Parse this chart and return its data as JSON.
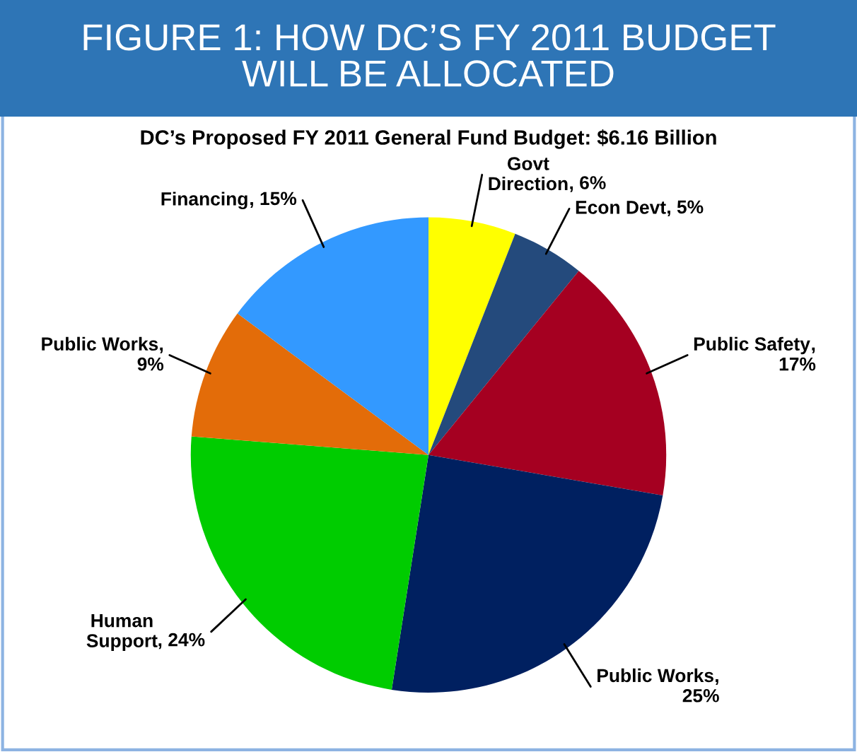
{
  "chart_data": {
    "type": "pie",
    "title": "FIGURE 1: HOW DC’S FY 2011 BUDGET\nWILL BE ALLOCATED",
    "subtitle": "DC’s Proposed FY 2011 General Fund Budget: $6.16 Billion",
    "categories": [
      "Govt\nDirection",
      "Econ Devt",
      "Public Safety",
      "Public Works",
      "Human\nSupport",
      "Public Works",
      "Financing"
    ],
    "values": [
      6,
      5,
      17,
      25,
      24,
      9,
      15
    ],
    "value_labels": [
      ", 6%",
      ", 5%",
      ",\n17%",
      ",\n25%",
      ", 24%",
      ",\n9%",
      ", 15%"
    ],
    "colors": [
      "#ffff00",
      "#244a7c",
      "#a50021",
      "#002060",
      "#00cc00",
      "#e36c09",
      "#3399ff"
    ]
  }
}
